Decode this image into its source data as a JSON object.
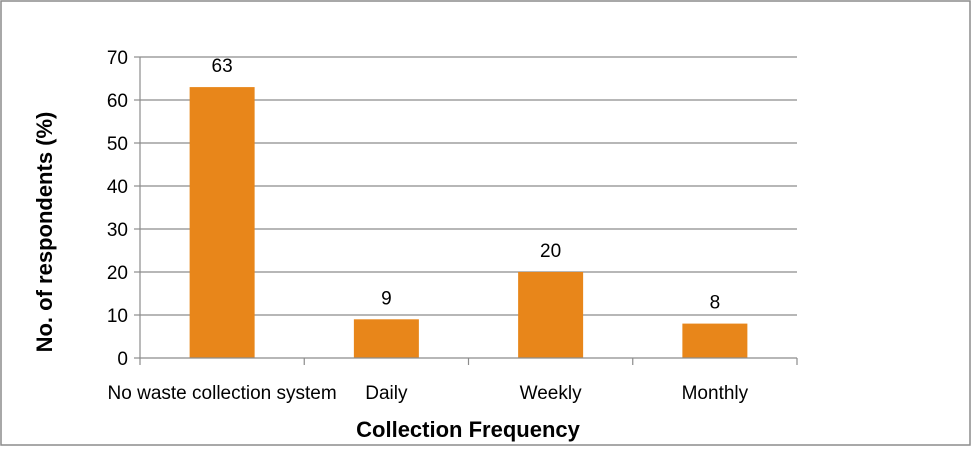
{
  "chart_data": {
    "type": "bar",
    "title": "",
    "xlabel": "Collection Frequency",
    "ylabel": "No. of respondents (%)",
    "categories": [
      "No waste collection system",
      "Daily",
      "Weekly",
      "Monthly"
    ],
    "values": [
      63,
      9,
      20,
      8
    ],
    "data_labels": [
      "63",
      "9",
      "20",
      "8"
    ],
    "ylim": [
      0,
      70
    ],
    "yticks": [
      "0",
      "10",
      "20",
      "30",
      "40",
      "50",
      "60",
      "70"
    ],
    "grid": true,
    "legend": "none",
    "bar_color": "#E8861A",
    "grid_color": "#8C8C8C",
    "frame_color": "#8C8C8C"
  }
}
